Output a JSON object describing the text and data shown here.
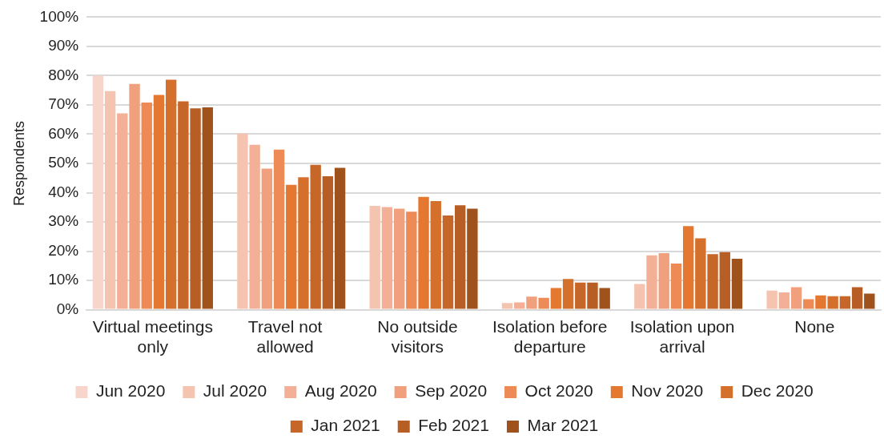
{
  "chart_data": {
    "type": "bar",
    "ylabel": "Respondents",
    "categories": [
      "Virtual meetings only",
      "Travel not allowed",
      "No outside visitors",
      "Isolation before departure",
      "Isolation upon arrival",
      "None"
    ],
    "series": [
      {
        "name": "Jun 2020",
        "color": "#f8d5ca",
        "values": [
          80,
          null,
          null,
          null,
          null,
          null
        ]
      },
      {
        "name": "Jul 2020",
        "color": "#f5c4b0",
        "values": [
          74.7,
          60.2,
          35.5,
          2.3,
          8.8,
          6.5
        ]
      },
      {
        "name": "Aug 2020",
        "color": "#f3b097",
        "values": [
          67.1,
          56.4,
          35.1,
          2.5,
          18.6,
          5.9
        ]
      },
      {
        "name": "Sep 2020",
        "color": "#f0a07c",
        "values": [
          77.2,
          48.2,
          34.5,
          4.5,
          19.3,
          7.7
        ]
      },
      {
        "name": "Oct 2020",
        "color": "#ed8a55",
        "values": [
          70.8,
          54.7,
          33.5,
          4.1,
          15.8,
          3.6
        ]
      },
      {
        "name": "Nov 2020",
        "color": "#e57830",
        "values": [
          73.4,
          42.7,
          38.6,
          7.4,
          28.6,
          4.9
        ]
      },
      {
        "name": "Dec 2020",
        "color": "#d4702c",
        "values": [
          78.6,
          45.3,
          37.1,
          10.5,
          24.4,
          4.6
        ]
      },
      {
        "name": "Jan 2021",
        "color": "#c66628",
        "values": [
          71.2,
          49.5,
          32.2,
          9.3,
          19.0,
          4.6
        ]
      },
      {
        "name": "Feb 2021",
        "color": "#b75e24",
        "values": [
          68.8,
          45.6,
          35.7,
          9.3,
          19.7,
          7.7
        ]
      },
      {
        "name": "Mar 2021",
        "color": "#a0521d",
        "values": [
          69.2,
          48.5,
          34.5,
          7.4,
          17.4,
          5.5
        ]
      }
    ],
    "ylim": [
      0,
      100
    ],
    "yticks": [
      {
        "value": 0,
        "label": "0%"
      },
      {
        "value": 10,
        "label": "10%"
      },
      {
        "value": 20,
        "label": "20%"
      },
      {
        "value": 30,
        "label": "30%"
      },
      {
        "value": 40,
        "label": "40%"
      },
      {
        "value": 50,
        "label": "50%"
      },
      {
        "value": 60,
        "label": "60%"
      },
      {
        "value": 70,
        "label": "70%"
      },
      {
        "value": 80,
        "label": "80%"
      },
      {
        "value": 90,
        "label": "90%"
      },
      {
        "value": 100,
        "label": "100%"
      }
    ],
    "grid": "y",
    "legend": "bottom"
  }
}
